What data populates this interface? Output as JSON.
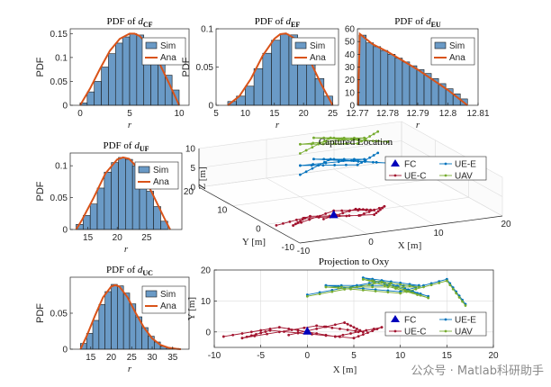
{
  "colors": {
    "bar": "#6a9ac6",
    "bar_edge": "#1a1a1a",
    "ana": "#d95319",
    "fc": "#0000bb",
    "uec": "#a2142f",
    "uee": "#0072bd",
    "uav": "#77ac30",
    "axis": "#262626",
    "grid": "#dcdcdc"
  },
  "watermark": "公众号 · Matlab科研助手",
  "chart_data": [
    {
      "id": "cf",
      "type": "bar",
      "title_prefix": "PDF of ",
      "title_var": "d",
      "title_sub": "CF",
      "xlabel": "r",
      "ylabel": "PDF",
      "xlim": [
        -1,
        11
      ],
      "ylim": [
        0,
        0.16
      ],
      "xticks": [
        0,
        5,
        10
      ],
      "xticklabels": [
        "0",
        "5",
        "10"
      ],
      "yticks": [
        0,
        0.05,
        0.1,
        0.15
      ],
      "yticklabels": [
        "0",
        "0.05",
        "0.1",
        "0.15"
      ],
      "bin_edges": [
        0,
        0.714,
        1.429,
        2.143,
        2.857,
        3.571,
        4.286,
        5,
        5.714,
        6.429,
        7.143,
        7.857,
        8.571,
        9.286,
        10
      ],
      "values": [
        0.005,
        0.028,
        0.05,
        0.08,
        0.108,
        0.13,
        0.143,
        0.15,
        0.147,
        0.138,
        0.12,
        0.095,
        0.063,
        0.032
      ],
      "ana_x": [
        0,
        1,
        2,
        3,
        4,
        5,
        5.5,
        6,
        7,
        8,
        9,
        10
      ],
      "ana_y": [
        0,
        0.035,
        0.076,
        0.114,
        0.139,
        0.15,
        0.15,
        0.145,
        0.124,
        0.088,
        0.045,
        0
      ],
      "legend": [
        "Sim",
        "Ana"
      ]
    },
    {
      "id": "ef",
      "type": "bar",
      "title_prefix": "PDF of ",
      "title_var": "d",
      "title_sub": "EF",
      "xlabel": "r",
      "ylabel": "PDF",
      "xlim": [
        5,
        26
      ],
      "ylim": [
        0,
        0.1
      ],
      "xticks": [
        5,
        10,
        15,
        20,
        25
      ],
      "xticklabels": [
        "5",
        "10",
        "15",
        "20",
        "25"
      ],
      "yticks": [
        0,
        0.05,
        0.1
      ],
      "yticklabels": [
        "0",
        "0.05",
        "0.1"
      ],
      "bin_edges": [
        7,
        8.5,
        10,
        11.5,
        13,
        14.5,
        16,
        17.5,
        19,
        20.5,
        22,
        23.5,
        25
      ],
      "values": [
        0.005,
        0.012,
        0.025,
        0.048,
        0.068,
        0.085,
        0.093,
        0.092,
        0.086,
        0.063,
        0.035,
        0.012
      ],
      "ana_x": [
        7,
        9,
        11,
        13,
        15,
        16,
        17,
        19,
        21,
        23,
        25
      ],
      "ana_y": [
        0,
        0.012,
        0.035,
        0.065,
        0.087,
        0.093,
        0.094,
        0.085,
        0.06,
        0.028,
        0
      ],
      "legend": [
        "Sim",
        "Ana"
      ]
    },
    {
      "id": "eu",
      "type": "bar",
      "title_prefix": "PDF of ",
      "title_var": "d",
      "title_sub": "EU",
      "xlabel": "r",
      "ylabel": "",
      "xlim": [
        12.77,
        12.81
      ],
      "ylim": [
        0,
        60
      ],
      "xticks": [
        12.77,
        12.78,
        12.79,
        12.8,
        12.81
      ],
      "xticklabels": [
        "12.77",
        "12.78",
        "12.79",
        "12.8",
        "12.81"
      ],
      "yticks": [
        0,
        10,
        20,
        30,
        40,
        50,
        60
      ],
      "yticklabels": [
        "0",
        "10",
        "20",
        "30",
        "40",
        "50",
        "60"
      ],
      "bin_edges": [
        12.7705,
        12.7729,
        12.7753,
        12.7777,
        12.7801,
        12.7825,
        12.7849,
        12.7873,
        12.7897,
        12.7921,
        12.7945,
        12.7969,
        12.7993,
        12.8017,
        12.8041,
        12.8065
      ],
      "values": [
        55,
        49,
        46,
        43,
        40,
        37,
        34,
        31,
        28,
        25,
        21,
        17,
        13,
        9,
        5
      ],
      "ana_x": [
        12.7702,
        12.7708,
        12.775,
        12.78,
        12.785,
        12.79,
        12.795,
        12.8,
        12.8065
      ],
      "ana_y": [
        0,
        56,
        48,
        42,
        35,
        28,
        20,
        12,
        0
      ],
      "legend": [
        "Sim",
        "Ana"
      ]
    },
    {
      "id": "uf",
      "type": "bar",
      "title_prefix": "PDF of ",
      "title_var": "d",
      "title_sub": "UF",
      "xlabel": "r",
      "ylabel": "PDF",
      "xlim": [
        12,
        31
      ],
      "ylim": [
        0,
        0.12
      ],
      "xticks": [
        15,
        20,
        25
      ],
      "xticklabels": [
        "15",
        "20",
        "25"
      ],
      "yticks": [
        0,
        0.05,
        0.1
      ],
      "yticklabels": [
        "0",
        "0.05",
        "0.1"
      ],
      "bin_edges": [
        13,
        14.2,
        15.4,
        16.6,
        17.8,
        19,
        20.2,
        21.4,
        22.6,
        23.8,
        25,
        26.2,
        27.4,
        28.6
      ],
      "values": [
        0.008,
        0.022,
        0.04,
        0.065,
        0.09,
        0.105,
        0.113,
        0.11,
        0.1,
        0.082,
        0.06,
        0.036,
        0.013
      ],
      "ana_x": [
        13,
        14,
        16,
        18,
        20,
        21,
        22,
        24,
        26,
        28,
        29
      ],
      "ana_y": [
        0,
        0.015,
        0.05,
        0.088,
        0.11,
        0.113,
        0.111,
        0.092,
        0.056,
        0.018,
        0
      ],
      "legend": [
        "Sim",
        "Ana"
      ]
    },
    {
      "id": "uc",
      "type": "bar",
      "title_prefix": "PDF of ",
      "title_var": "d",
      "title_sub": "UC",
      "xlabel": "r",
      "ylabel": "PDF",
      "xlim": [
        10,
        39
      ],
      "ylim": [
        0,
        0.1
      ],
      "xticks": [
        15,
        20,
        25,
        30,
        35
      ],
      "xticklabels": [
        "15",
        "20",
        "25",
        "30",
        "35"
      ],
      "yticks": [
        0,
        0.05
      ],
      "yticklabels": [
        "0",
        "0.05"
      ],
      "bin_edges": [
        12.5,
        14,
        15.5,
        17,
        18.5,
        20,
        21.5,
        23,
        24.5,
        26,
        27.5,
        29,
        30.5,
        32,
        33.5,
        35,
        36.5
      ],
      "values": [
        0.008,
        0.022,
        0.04,
        0.062,
        0.08,
        0.09,
        0.088,
        0.078,
        0.063,
        0.045,
        0.03,
        0.018,
        0.01,
        0.004,
        0.002,
        0.001
      ],
      "ana_x": [
        12.5,
        14,
        16,
        18,
        20,
        21,
        22,
        24,
        26,
        28,
        30,
        32,
        34,
        36,
        37
      ],
      "ana_y": [
        0,
        0.018,
        0.046,
        0.072,
        0.087,
        0.089,
        0.087,
        0.072,
        0.05,
        0.03,
        0.015,
        0.006,
        0.002,
        0.0005,
        0
      ],
      "legend": [
        "Sim",
        "Ana"
      ]
    },
    {
      "id": "loc3d",
      "type": "scatter3d",
      "title": "Captured Location",
      "xlabel": "X [m]",
      "ylabel": "Y [m]",
      "zlabel": "Z [m]",
      "xlim": [
        -10,
        20
      ],
      "ylim": [
        -10,
        20
      ],
      "zlim": [
        0,
        10
      ],
      "xticks": [
        -10,
        0,
        10,
        20
      ],
      "yticks": [
        -10,
        0,
        10,
        20
      ],
      "zticks": [
        0,
        5,
        10
      ],
      "xticklabels": [
        "-10",
        "0",
        "10",
        "20"
      ],
      "yticklabels": [
        "-10",
        "0",
        "10",
        "20"
      ],
      "zticklabels": [
        "0",
        "5",
        "10"
      ],
      "fc": {
        "label": "FC",
        "x": 0,
        "y": 0,
        "z": 0
      },
      "series": [
        {
          "name": "UE-C",
          "z": 0,
          "points": [
            [
              -9,
              -1
            ],
            [
              -3,
              1
            ],
            [
              3,
              -1.5
            ],
            [
              8,
              1
            ],
            [
              5,
              -2
            ],
            [
              -4,
              0.5
            ],
            [
              -7,
              -2
            ],
            [
              1,
              2
            ],
            [
              6,
              0
            ],
            [
              4,
              1.5
            ],
            [
              -2,
              -1
            ]
          ]
        },
        {
          "name": "UE-E",
          "z": 4.5,
          "points": [
            [
              1,
              12
            ],
            [
              8,
              17
            ],
            [
              14,
              12
            ],
            [
              6,
              18
            ],
            [
              12,
              15
            ],
            [
              3,
              16
            ],
            [
              10,
              13
            ],
            [
              15,
              17
            ]
          ]
        },
        {
          "name": "UAV",
          "z": 10,
          "points": [
            [
              1,
              12
            ],
            [
              8,
              17
            ],
            [
              14,
              12
            ],
            [
              6,
              18
            ],
            [
              12,
              15
            ],
            [
              3,
              16
            ],
            [
              10,
              13
            ],
            [
              15,
              17
            ]
          ]
        }
      ],
      "legend": [
        "FC",
        "UE-E",
        "UE-C",
        "UAV"
      ]
    },
    {
      "id": "proj",
      "type": "scatter",
      "title": "Projection to Oxy",
      "xlabel": "X [m]",
      "ylabel": "Y [m]",
      "xlim": [
        -10,
        20
      ],
      "ylim": [
        -5,
        20
      ],
      "xticks": [
        -10,
        -5,
        0,
        5,
        10,
        15,
        20
      ],
      "xticklabels": [
        "-10",
        "-5",
        "0",
        "5",
        "10",
        "15",
        "20"
      ],
      "yticks": [
        0,
        10,
        20
      ],
      "yticklabels": [
        "0",
        "10",
        "20"
      ],
      "fc": {
        "label": "FC",
        "x": 0,
        "y": 0
      },
      "series": [
        {
          "name": "UE-C",
          "points": [
            [
              -9,
              -1.5
            ],
            [
              -3,
              1.5
            ],
            [
              3,
              -1.5
            ],
            [
              8,
              1.5
            ],
            [
              5,
              -2
            ],
            [
              -4,
              0.5
            ],
            [
              -7,
              -2
            ],
            [
              1,
              2
            ],
            [
              6,
              0
            ],
            [
              4,
              3
            ],
            [
              -2,
              -1
            ]
          ]
        },
        {
          "name": "UE-E",
          "points": [
            [
              0,
              12
            ],
            [
              8,
              16.5
            ],
            [
              13,
              11.5
            ],
            [
              6,
              17.5
            ],
            [
              12,
              15
            ],
            [
              2,
              15
            ],
            [
              10,
              13
            ],
            [
              15,
              17
            ],
            [
              17,
              9
            ]
          ]
        },
        {
          "name": "UAV",
          "points": [
            [
              0,
              11.5
            ],
            [
              8,
              16
            ],
            [
              13,
              11
            ],
            [
              6,
              17
            ],
            [
              12,
              14.5
            ],
            [
              2,
              14.5
            ],
            [
              10,
              12.5
            ],
            [
              15,
              16.5
            ],
            [
              17,
              8.5
            ]
          ]
        }
      ],
      "legend": [
        "FC",
        "UE-E",
        "UE-C",
        "UAV"
      ]
    }
  ]
}
